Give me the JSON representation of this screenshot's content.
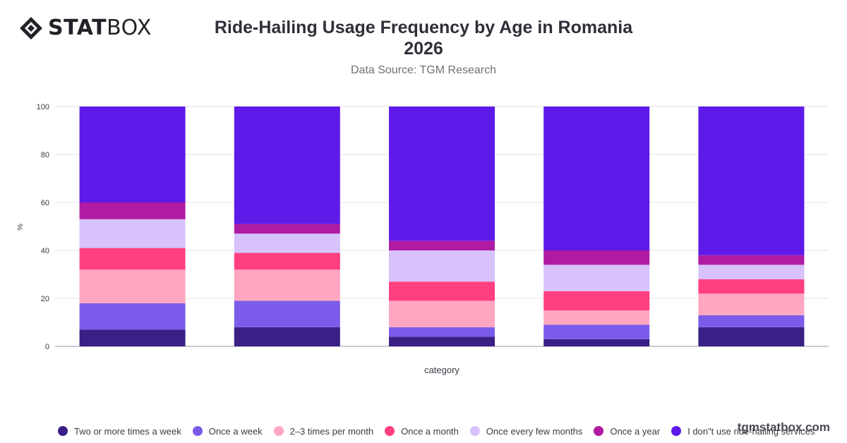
{
  "brand": {
    "logo_bold": "STAT",
    "logo_light": "BOX",
    "watermark": "tgmstatbox.com"
  },
  "chart_data": {
    "type": "bar",
    "stacked": true,
    "title_line1": "Ride-Hailing Usage Frequency by Age in Romania",
    "title_line2": "2026",
    "subtitle": "Data Source: TGM Research",
    "xlabel": "category",
    "ylabel": "%",
    "ylim": [
      0,
      100
    ],
    "yticks": [
      0,
      20,
      40,
      60,
      80,
      100
    ],
    "grid": true,
    "legend_position": "bottom",
    "categories": [
      "",
      "",
      "",
      "",
      ""
    ],
    "series": [
      {
        "name": "Two or more times a week",
        "color": "#3a1f86",
        "values": [
          7,
          8,
          4,
          3,
          8
        ]
      },
      {
        "name": "Once a week",
        "color": "#7b5cea",
        "values": [
          11,
          11,
          4,
          6,
          5
        ]
      },
      {
        "name": "2–3 times per month",
        "color": "#ffa6c1",
        "values": [
          14,
          13,
          11,
          6,
          9
        ]
      },
      {
        "name": "Once a month",
        "color": "#ff3f7f",
        "values": [
          9,
          7,
          8,
          8,
          6
        ]
      },
      {
        "name": "Once every few months",
        "color": "#d7c2fb",
        "values": [
          12,
          8,
          13,
          11,
          6
        ]
      },
      {
        "name": "Once a year",
        "color": "#b01ba3",
        "values": [
          7,
          4,
          4,
          6,
          4
        ]
      },
      {
        "name": "I don\"t use ride-hailing services",
        "color": "#5e1ae9",
        "values": [
          40,
          49,
          56,
          60,
          62
        ]
      }
    ]
  }
}
